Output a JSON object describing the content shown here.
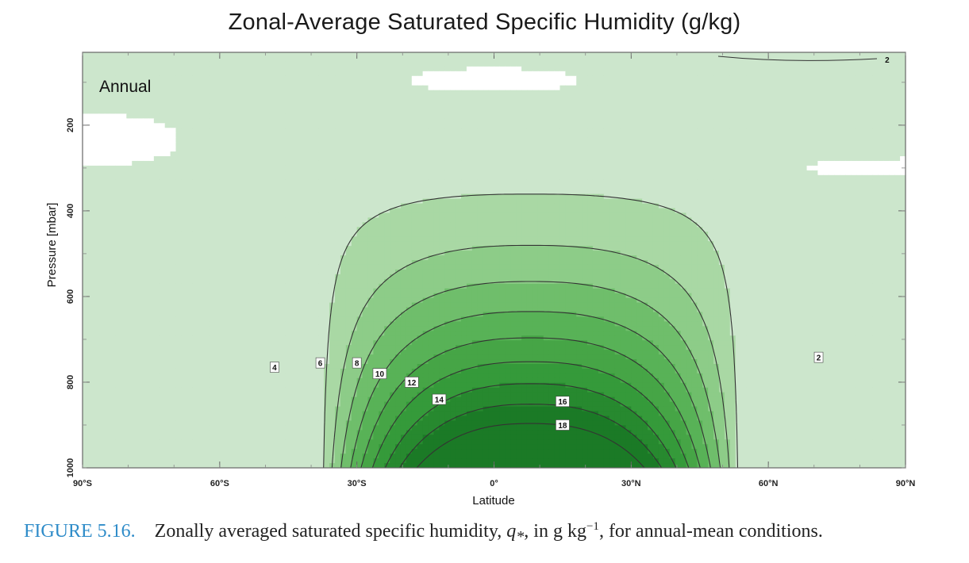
{
  "chart_data": {
    "type": "contour",
    "title": "Zonal-Average Saturated Specific Humidity (g/kg)",
    "panel_label": "Annual",
    "xlabel": "Latitude",
    "ylabel": "Pressure [mbar]",
    "x_ticks": [
      {
        "value": -90,
        "label": "90°S"
      },
      {
        "value": -60,
        "label": "60°S"
      },
      {
        "value": -30,
        "label": "30°S"
      },
      {
        "value": 0,
        "label": "0°"
      },
      {
        "value": 30,
        "label": "30°N"
      },
      {
        "value": 60,
        "label": "60°N"
      },
      {
        "value": 90,
        "label": "90°N"
      }
    ],
    "y_ticks": [
      {
        "value": 200,
        "label": "200"
      },
      {
        "value": 400,
        "label": "400"
      },
      {
        "value": 600,
        "label": "600"
      },
      {
        "value": 800,
        "label": "800"
      },
      {
        "value": 1000,
        "label": "1000"
      }
    ],
    "xlim": [
      -90,
      90
    ],
    "ylim": [
      1000,
      30
    ],
    "contour_levels": [
      2,
      4,
      6,
      8,
      10,
      12,
      14,
      16,
      18
    ],
    "labeled_contours": [
      {
        "level": 2,
        "label": "2",
        "lat": 71,
        "p": 742
      },
      {
        "level": 4,
        "label": "4",
        "lat": -48,
        "p": 765
      },
      {
        "level": 6,
        "label": "6",
        "lat": -38,
        "p": 755
      },
      {
        "level": 8,
        "label": "8",
        "lat": -30,
        "p": 755
      },
      {
        "level": 10,
        "label": "10",
        "lat": -25,
        "p": 780
      },
      {
        "level": 12,
        "label": "12",
        "lat": -18,
        "p": 800
      },
      {
        "level": 14,
        "label": "14",
        "lat": -12,
        "p": 840
      },
      {
        "level": 16,
        "label": "16",
        "lat": 15,
        "p": 845
      },
      {
        "level": 18,
        "label": "18",
        "lat": 15,
        "p": 900
      }
    ],
    "top_contour_label": "2",
    "fill_colors": [
      "#ffffff",
      "#cce6cc",
      "#a9d8a4",
      "#8dcc88",
      "#6fbe6b",
      "#58b257",
      "#46a546",
      "#359a3a",
      "#27892f",
      "#1b7a26"
    ],
    "line_color": "#333333"
  },
  "caption": {
    "figure_number": "FIGURE 5.16.",
    "text_before": "Zonally averaged saturated specific humidity, ",
    "symbol": "q",
    "symbol_sub": "*",
    "text_mid": ", in  g kg",
    "superscript": "−1",
    "text_after": ", for annual-mean conditions."
  }
}
